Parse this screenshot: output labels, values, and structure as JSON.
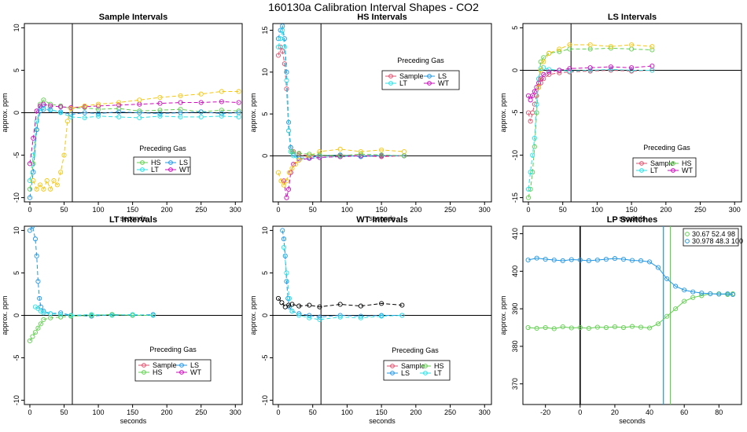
{
  "page_title": "160130a   Calibration Interval Shapes - CO2",
  "colors": {
    "Sample": "#e0506e",
    "HS": "#61d04f",
    "LS": "#2297e6",
    "LT": "#28e2e5",
    "WT": "#cd0bbc",
    "yellow": "#f5c710",
    "black": "#000000"
  },
  "chart_data": [
    {
      "type": "scatter",
      "title": "Sample Intervals",
      "xlabel": "seconds",
      "ylabel": "approx. ppm",
      "xlim": [
        -8,
        310
      ],
      "ylim": [
        -10.5,
        10.5
      ],
      "xticks": [
        0,
        50,
        100,
        150,
        200,
        250,
        300
      ],
      "yticks": [
        -10,
        -5,
        0,
        5,
        10
      ],
      "vline": 62,
      "legend": {
        "title": "Preceding Gas",
        "position": "bottom-center",
        "entries": [
          "HS",
          "LS",
          "LT",
          "WT"
        ]
      },
      "series": [
        {
          "name": "HS",
          "color": "#61d04f",
          "x": [
            0,
            5,
            10,
            15,
            20,
            30,
            45,
            60,
            80,
            100,
            130,
            160,
            190,
            220,
            250,
            280,
            305
          ],
          "y": [
            -9,
            -6,
            -2,
            1,
            1.5,
            1,
            0.8,
            0.5,
            0.6,
            0.4,
            0.5,
            0.2,
            0.3,
            0.4,
            0.1,
            0.3,
            0.2
          ]
        },
        {
          "name": "LS",
          "color": "#2297e6",
          "x": [
            0,
            5,
            10,
            15,
            20,
            30,
            45,
            60,
            80,
            100,
            130,
            160,
            190,
            220,
            250,
            280,
            305
          ],
          "y": [
            -10,
            -7,
            -2,
            0.2,
            0.4,
            0.3,
            0.1,
            -0.2,
            0,
            -0.1,
            0.1,
            0,
            -0.1,
            0,
            0.1,
            -0.1,
            0
          ]
        },
        {
          "name": "LT",
          "color": "#28e2e5",
          "x": [
            0,
            5,
            10,
            15,
            20,
            30,
            45,
            60,
            80,
            100,
            130,
            160,
            190,
            220,
            250,
            280,
            305
          ],
          "y": [
            -8,
            -5,
            -1,
            0.5,
            0.8,
            0.4,
            0,
            -0.5,
            -0.6,
            -0.4,
            -0.5,
            -0.6,
            -0.4,
            -0.5,
            -0.5,
            -0.4,
            -0.5
          ]
        },
        {
          "name": "WT",
          "color": "#cd0bbc",
          "x": [
            0,
            5,
            10,
            15,
            20,
            30,
            45,
            60,
            80,
            100,
            130,
            160,
            190,
            220,
            250,
            280,
            305
          ],
          "y": [
            -6,
            -3,
            0.2,
            0.8,
            1,
            0.8,
            0.7,
            0.6,
            0.7,
            0.8,
            0.9,
            1,
            1.1,
            1.2,
            1.2,
            1.3,
            1.2
          ]
        },
        {
          "name": "",
          "color": "#f5c710",
          "x": [
            5,
            10,
            15,
            20,
            25,
            30,
            35,
            40,
            45,
            50,
            55,
            60,
            80,
            100,
            130,
            160,
            190,
            220,
            250,
            280,
            305
          ],
          "y": [
            -8,
            -9,
            -8.5,
            -9,
            -8,
            -9,
            -8,
            -8.5,
            -7,
            -5,
            -1,
            0.5,
            0.8,
            1,
            1.2,
            1.5,
            1.8,
            2,
            2.2,
            2.5,
            2.5
          ]
        }
      ]
    },
    {
      "type": "scatter",
      "title": "HS Intervals",
      "xlabel": "seconds",
      "ylabel": "approx. ppm",
      "xlim": [
        -8,
        310
      ],
      "ylim": [
        -5.5,
        15.8
      ],
      "xticks": [
        0,
        50,
        100,
        150,
        200,
        250,
        300
      ],
      "yticks": [
        0,
        5,
        10,
        15
      ],
      "vline": 62,
      "legend": {
        "title": "Preceding Gas",
        "position": "top-center",
        "entries": [
          "Sample",
          "LS",
          "LT",
          "WT"
        ]
      },
      "series": [
        {
          "name": "Sample",
          "color": "#e0506e",
          "x": [
            0,
            3,
            6,
            9,
            12,
            15,
            18,
            22,
            30,
            45,
            60,
            90,
            120,
            150,
            183
          ],
          "y": [
            12,
            13,
            12.5,
            11,
            8,
            3,
            1,
            0.5,
            0.2,
            0,
            0,
            0.1,
            0,
            -0.1,
            0
          ]
        },
        {
          "name": "LS",
          "color": "#2297e6",
          "x": [
            0,
            3,
            6,
            9,
            12,
            15,
            18,
            22,
            30,
            45,
            60,
            90,
            120,
            150,
            183
          ],
          "y": [
            14,
            15,
            15.5,
            14,
            10,
            4,
            1,
            0.2,
            -0.3,
            -0.2,
            0,
            0.1,
            -0.1,
            0,
            0
          ]
        },
        {
          "name": "LT",
          "color": "#28e2e5",
          "x": [
            0,
            3,
            6,
            9,
            12,
            15,
            18,
            22,
            30,
            45,
            60,
            90,
            120,
            150,
            183
          ],
          "y": [
            13,
            14,
            15,
            13,
            9,
            3,
            0.5,
            0,
            -0.5,
            -0.3,
            -0.2,
            -0.1,
            0,
            0.1,
            0
          ]
        },
        {
          "name": "WT",
          "color": "#cd0bbc",
          "x": [
            8,
            12,
            15,
            18,
            22,
            30,
            45,
            60,
            90,
            120,
            150,
            183
          ],
          "y": [
            -3,
            -5,
            -4,
            -2,
            -1,
            -0.5,
            -0.3,
            -0.2,
            -0.1,
            0,
            0,
            0
          ]
        },
        {
          "name": "",
          "color": "#f5c710",
          "x": [
            0,
            4,
            8,
            12,
            16,
            20,
            25,
            30,
            45,
            60,
            90,
            120,
            150,
            183
          ],
          "y": [
            -2,
            -3,
            -3.5,
            -3,
            -2,
            -1.5,
            -1,
            -0.5,
            0,
            0.5,
            0.8,
            0.5,
            0.7,
            0.5
          ]
        },
        {
          "name": "",
          "color": "#61d04f",
          "x": [
            20,
            30,
            45,
            60,
            90,
            120,
            150,
            183
          ],
          "y": [
            0.5,
            0.3,
            0.2,
            0.1,
            0,
            0.2,
            0.1,
            0
          ]
        }
      ]
    },
    {
      "type": "scatter",
      "title": "LS Intervals",
      "xlabel": "seconds",
      "ylabel": "approx. ppm",
      "xlim": [
        -8,
        310
      ],
      "ylim": [
        -15.5,
        5.5
      ],
      "xticks": [
        0,
        50,
        100,
        150,
        200,
        250,
        300
      ],
      "yticks": [
        -15,
        -10,
        -5,
        0,
        5
      ],
      "vline": 62,
      "legend": {
        "title": "Preceding Gas",
        "position": "bottom-center",
        "entries": [
          "Sample",
          "HS",
          "LT",
          "WT"
        ]
      },
      "series": [
        {
          "name": "Sample",
          "color": "#e0506e",
          "x": [
            0,
            3,
            6,
            9,
            12,
            15,
            18,
            22,
            30,
            45,
            60,
            90,
            120,
            150,
            180
          ],
          "y": [
            -5,
            -6,
            -5,
            -4,
            -3,
            -2,
            -1.5,
            -1,
            -0.5,
            -0.3,
            -0.2,
            -0.1,
            0,
            -0.1,
            0
          ]
        },
        {
          "name": "HS",
          "color": "#61d04f",
          "x": [
            0,
            3,
            6,
            9,
            12,
            15,
            18,
            22,
            30,
            45,
            60,
            90,
            120,
            150,
            180
          ],
          "y": [
            -15,
            -14,
            -12,
            -9,
            -5,
            -1,
            1,
            1.5,
            2,
            2.2,
            2.5,
            2.5,
            2.6,
            2.5,
            2.4
          ]
        },
        {
          "name": "LT",
          "color": "#28e2e5",
          "x": [
            0,
            3,
            6,
            9,
            12,
            15,
            18,
            22,
            30,
            45,
            60,
            90,
            120,
            150,
            180
          ],
          "y": [
            -14,
            -12,
            -10,
            -8,
            -4,
            -1,
            0.2,
            0.3,
            0.1,
            0,
            -0.1,
            0,
            0.1,
            0,
            0
          ]
        },
        {
          "name": "WT",
          "color": "#cd0bbc",
          "x": [
            0,
            3,
            6,
            9,
            12,
            15,
            18,
            22,
            30,
            45,
            60,
            90,
            120,
            150,
            180
          ],
          "y": [
            -3,
            -3.5,
            -3,
            -2.5,
            -2,
            -1.5,
            -1,
            -0.5,
            -0.2,
            0,
            0.2,
            0.3,
            0.4,
            0.3,
            0.5
          ]
        },
        {
          "name": "",
          "color": "#f5c710",
          "x": [
            15,
            18,
            22,
            30,
            45,
            60,
            90,
            120,
            150,
            180
          ],
          "y": [
            -2,
            0,
            1,
            2,
            2.5,
            3,
            3,
            2.8,
            3,
            2.8
          ]
        }
      ]
    },
    {
      "type": "scatter",
      "title": "LT Intervals",
      "xlabel": "seconds",
      "ylabel": "approx. ppm",
      "xlim": [
        -8,
        310
      ],
      "ylim": [
        -10.5,
        10.5
      ],
      "xticks": [
        0,
        50,
        100,
        150,
        200,
        250,
        300
      ],
      "yticks": [
        -10,
        -5,
        0,
        5,
        10
      ],
      "vline": 62,
      "legend": {
        "title": "Preceding Gas",
        "position": "bottom-right",
        "entries": [
          "Sample",
          "LS",
          "HS",
          "WT"
        ]
      },
      "series": [
        {
          "name": "LS",
          "color": "#2297e6",
          "x": [
            0,
            4,
            8,
            10,
            12,
            14,
            16,
            20,
            30,
            45,
            60,
            90,
            120,
            150,
            180
          ],
          "y": [
            10,
            10.5,
            9,
            7,
            4,
            2,
            1,
            0.5,
            0.2,
            0.3,
            0,
            -0.1,
            0.1,
            0,
            0.1
          ]
        },
        {
          "name": "HS",
          "color": "#61d04f",
          "x": [
            0,
            4,
            8,
            12,
            16,
            20,
            30,
            45,
            60,
            90,
            120,
            150,
            180
          ],
          "y": [
            -3,
            -2.5,
            -2,
            -1.5,
            -1,
            -0.5,
            -0.3,
            -0.2,
            -0.1,
            0,
            0.1,
            0,
            0
          ]
        },
        {
          "name": "",
          "color": "#28e2e5",
          "x": [
            8,
            12,
            16,
            20,
            30,
            45,
            60,
            90,
            120,
            150,
            180
          ],
          "y": [
            1,
            0.8,
            0.5,
            0.3,
            0.2,
            0.1,
            0,
            0.1,
            0,
            0.1,
            0
          ]
        }
      ]
    },
    {
      "type": "scatter",
      "title": "WT Intervals",
      "xlabel": "seconds",
      "ylabel": "approx. ppm",
      "xlim": [
        -8,
        310
      ],
      "ylim": [
        -10.5,
        10.5
      ],
      "xticks": [
        0,
        50,
        100,
        150,
        200,
        250,
        300
      ],
      "yticks": [
        -10,
        -5,
        0,
        5,
        10
      ],
      "vline": 62,
      "legend": {
        "title": "Preceding Gas",
        "position": "bottom-center",
        "entries": [
          "Sample",
          "HS",
          "LS",
          "LT"
        ]
      },
      "series": [
        {
          "name": "LS",
          "color": "#2297e6",
          "x": [
            6,
            8,
            10,
            12,
            14,
            16,
            20,
            30,
            45,
            60,
            90,
            120,
            150,
            180
          ],
          "y": [
            10,
            9,
            7,
            4,
            2,
            1,
            0.5,
            0.2,
            0,
            -0.2,
            0,
            -0.1,
            0,
            0
          ]
        },
        {
          "name": "LT",
          "color": "#28e2e5",
          "x": [
            8,
            12,
            16,
            20,
            30,
            45,
            60,
            90,
            120,
            150,
            180
          ],
          "y": [
            8,
            5,
            2,
            0.5,
            0,
            -0.3,
            -0.5,
            -0.2,
            -0.3,
            -0.1,
            0
          ]
        },
        {
          "name": "",
          "color": "#000000",
          "x": [
            0,
            5,
            10,
            15,
            20,
            30,
            45,
            60,
            90,
            120,
            150,
            180
          ],
          "y": [
            2,
            1.5,
            1,
            1.2,
            1.3,
            1.1,
            1.2,
            1,
            1.3,
            1.1,
            1.4,
            1.2
          ]
        }
      ]
    },
    {
      "type": "scatter",
      "title": "LP Switches",
      "xlabel": "seconds",
      "ylabel": "approx. ppm",
      "xlim": [
        -33,
        93
      ],
      "ylim": [
        364.5,
        412
      ],
      "xticks": [
        -20,
        0,
        20,
        40,
        60,
        80
      ],
      "yticks": [
        370,
        380,
        390,
        400,
        410
      ],
      "vline_black": 0,
      "vlines_colored": [
        {
          "x": 48,
          "color": "#2297e6"
        },
        {
          "x": 52,
          "color": "#61d04f"
        }
      ],
      "legend": {
        "position": "top-right",
        "entries": [
          "30.67 52.4 98",
          "30.978 48.3 100"
        ]
      },
      "series": [
        {
          "name": "30.67 52.4 98",
          "color": "#61d04f",
          "x": [
            -30,
            -25,
            -20,
            -15,
            -10,
            -5,
            0,
            5,
            10,
            15,
            20,
            25,
            30,
            35,
            40,
            45,
            50,
            55,
            60,
            65,
            70,
            75,
            80,
            85,
            88
          ],
          "y": [
            385,
            384.8,
            385,
            384.7,
            385.2,
            384.9,
            385,
            384.8,
            385.1,
            385,
            385.2,
            385,
            385.3,
            385.1,
            384.9,
            386,
            388,
            390,
            392,
            393,
            393.5,
            394,
            394,
            393.8,
            394
          ]
        },
        {
          "name": "30.978 48.3 100",
          "color": "#2297e6",
          "x": [
            -30,
            -25,
            -20,
            -15,
            -10,
            -5,
            0,
            5,
            10,
            15,
            20,
            25,
            30,
            35,
            40,
            45,
            50,
            55,
            60,
            65,
            70,
            75,
            80,
            85,
            88
          ],
          "y": [
            403,
            403.5,
            403.2,
            403,
            402.8,
            403.1,
            403,
            402.8,
            403,
            403.2,
            403.4,
            403.2,
            402.9,
            402.8,
            402.5,
            401,
            398,
            396,
            395,
            394.5,
            394.2,
            394,
            393.9,
            394,
            393.8
          ]
        }
      ]
    }
  ]
}
